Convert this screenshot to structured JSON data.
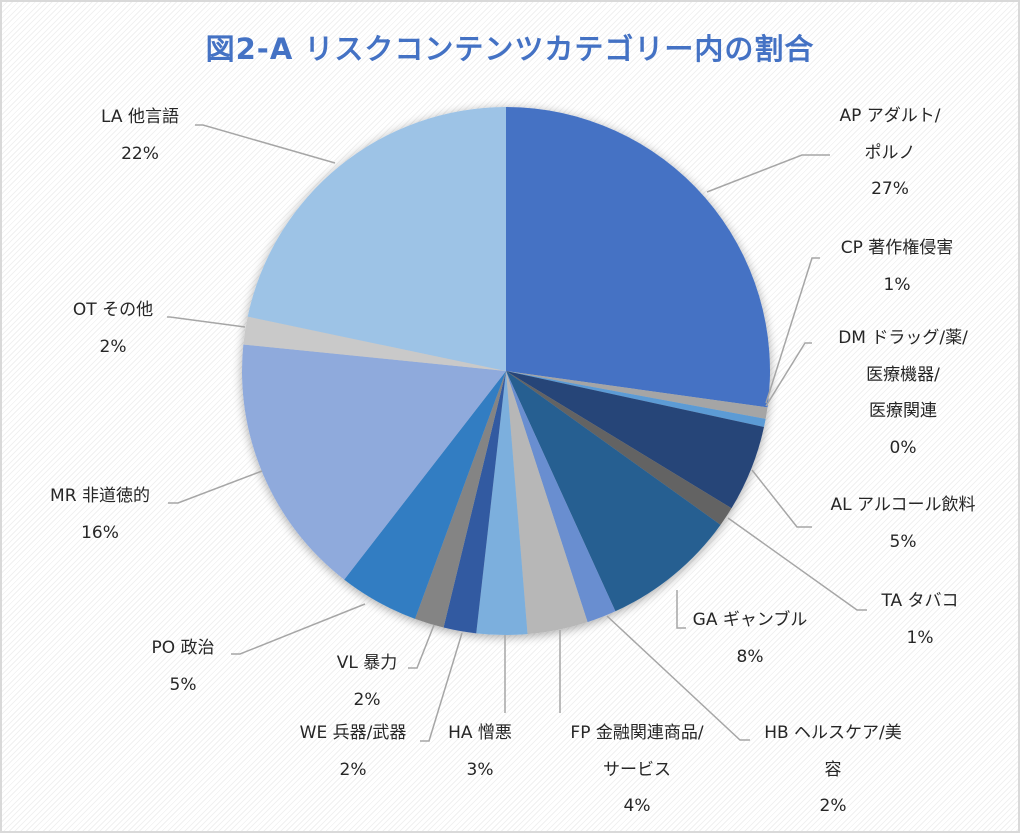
{
  "chart_data": {
    "type": "pie",
    "title": "図2-A リスクコンテンツカテゴリー内の割合",
    "start": "12 o'clock, clockwise",
    "legend": "none (data labels with leader lines)",
    "slices": [
      {
        "label": "AP アダルト/ポルノ",
        "lines": [
          "AP アダルト/",
          "ポルノ",
          "27%"
        ],
        "percent_label": "27%",
        "value": 27.2,
        "color": "#4472C4"
      },
      {
        "label": "CP 著作権侵害",
        "lines": [
          "CP 著作権侵害",
          "1%"
        ],
        "percent_label": "1%",
        "value": 0.7,
        "color": "#A5A5A5"
      },
      {
        "label": "DM ドラッグ/薬/医療機器/医療関連",
        "lines": [
          "DM ドラッグ/薬/",
          "医療機器/",
          "医療関連",
          "0%"
        ],
        "percent_label": "0%",
        "value": 0.5,
        "color": "#5B9BD5"
      },
      {
        "label": "AL アルコール飲料",
        "lines": [
          "AL アルコール飲料",
          "5%"
        ],
        "percent_label": "5%",
        "value": 5.3,
        "color": "#264478"
      },
      {
        "label": "TA タバコ",
        "lines": [
          "TA タバコ",
          "1%"
        ],
        "percent_label": "1%",
        "value": 1.2,
        "color": "#636363"
      },
      {
        "label": "GA ギャンブル",
        "lines": [
          "GA ギャンブル",
          "8%"
        ],
        "percent_label": "8%",
        "value": 8.3,
        "color": "#255E91"
      },
      {
        "label": "HB ヘルスケア/美容",
        "lines": [
          "HB ヘルスケア/美",
          "容",
          "2%"
        ],
        "percent_label": "2%",
        "value": 1.8,
        "color": "#698ED0"
      },
      {
        "label": "FP 金融関連商品/サービス",
        "lines": [
          "FP 金融関連商品/",
          "サービス",
          "4%"
        ],
        "percent_label": "4%",
        "value": 3.7,
        "color": "#B7B7B7"
      },
      {
        "label": "HA 憎悪",
        "lines": [
          "HA 憎悪",
          "3%"
        ],
        "percent_label": "3%",
        "value": 3.1,
        "color": "#7CAFDD"
      },
      {
        "label": "WE 兵器/武器",
        "lines": [
          "WE 兵器/武器",
          "2%"
        ],
        "percent_label": "2%",
        "value": 2.0,
        "color": "#335AA1"
      },
      {
        "label": "VL 暴力",
        "lines": [
          "VL 暴力",
          "2%"
        ],
        "percent_label": "2%",
        "value": 1.8,
        "color": "#848484"
      },
      {
        "label": "PO 政治",
        "lines": [
          "PO 政治",
          "5%"
        ],
        "percent_label": "5%",
        "value": 4.9,
        "color": "#327DC2"
      },
      {
        "label": "MR 非道徳的",
        "lines": [
          "MR 非道徳的",
          "16%"
        ],
        "percent_label": "16%",
        "value": 16.1,
        "color": "#8FAADC"
      },
      {
        "label": "OT その他",
        "lines": [
          "OT その他",
          "2%"
        ],
        "percent_label": "2%",
        "value": 1.7,
        "color": "#C9C9C9"
      },
      {
        "label": "LA 他言語",
        "lines": [
          "LA 他言語",
          "22%"
        ],
        "percent_label": "22%",
        "value": 21.7,
        "color": "#9DC3E6"
      }
    ]
  }
}
